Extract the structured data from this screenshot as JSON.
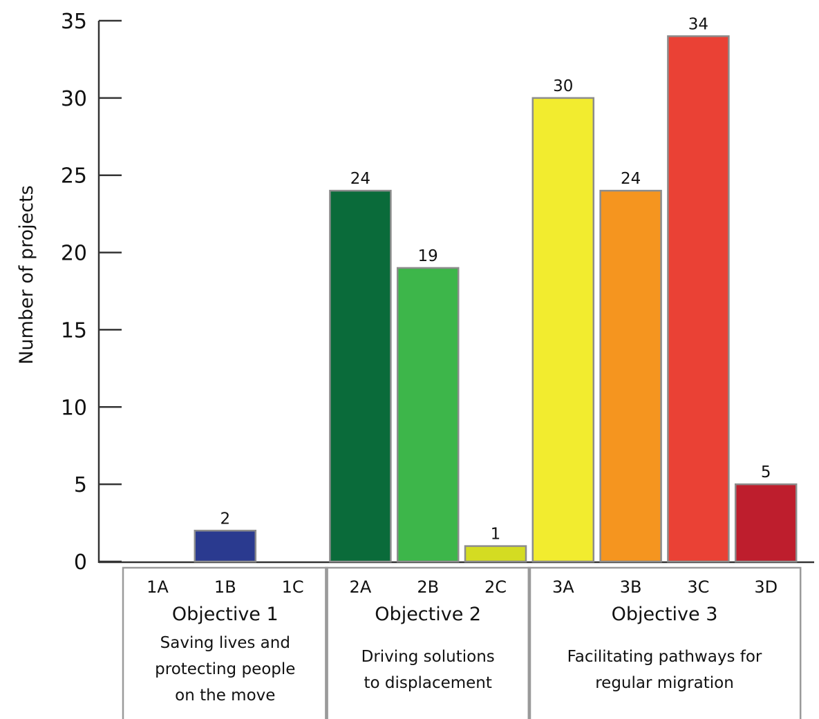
{
  "chart_data": {
    "type": "bar",
    "ylabel": "Number of projects",
    "xlabel": "",
    "ylim": [
      0,
      35
    ],
    "yticks": [
      0,
      5,
      10,
      15,
      20,
      25,
      30,
      35
    ],
    "grid": false,
    "categories": [
      "1A",
      "1B",
      "1C",
      "2A",
      "2B",
      "2C",
      "3A",
      "3B",
      "3C",
      "3D"
    ],
    "values": [
      null,
      2,
      null,
      24,
      19,
      1,
      30,
      24,
      34,
      5
    ],
    "data_labels": [
      "",
      "2",
      "",
      "24",
      "19",
      "1",
      "30",
      "24",
      "34",
      "5"
    ],
    "colors": [
      "#2a3a8f",
      "#2a3a8f",
      "#2a3a8f",
      "#0a6b3a",
      "#3db64a",
      "#d4dc22",
      "#f2ec2f",
      "#f5951f",
      "#ea4135",
      "#be1e2d"
    ],
    "groups": [
      {
        "title": "Objective 1",
        "description": [
          "Saving lives and",
          "protecting people",
          "on the move"
        ],
        "categories": [
          "1A",
          "1B",
          "1C"
        ]
      },
      {
        "title": "Objective 2",
        "description": [
          "Driving solutions",
          "to displacement"
        ],
        "categories": [
          "2A",
          "2B",
          "2C"
        ]
      },
      {
        "title": "Objective 3",
        "description": [
          "Facilitating pathways for",
          "regular migration"
        ],
        "categories": [
          "3A",
          "3B",
          "3C",
          "3D"
        ]
      }
    ]
  }
}
